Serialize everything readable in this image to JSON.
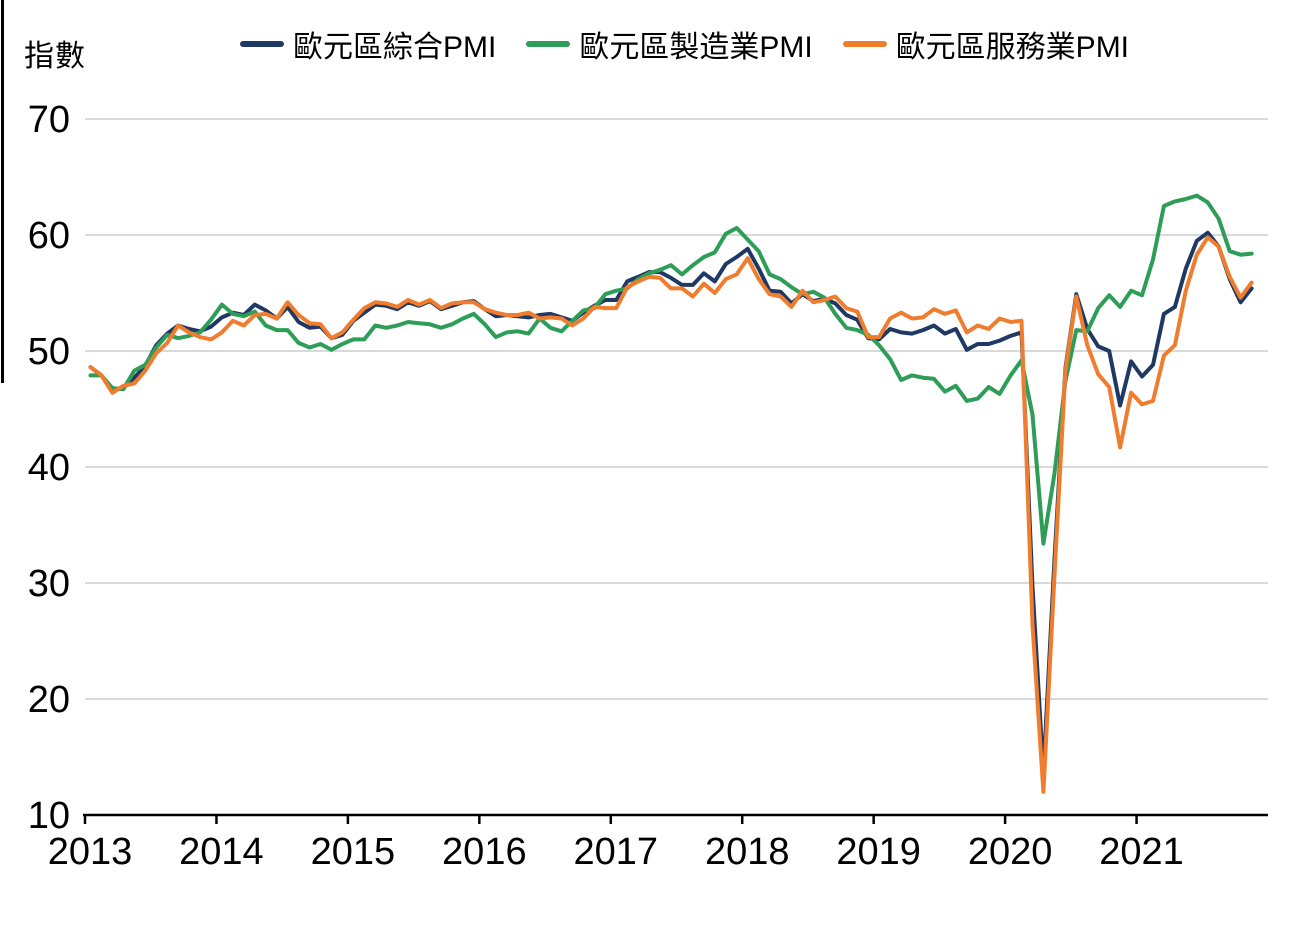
{
  "page": {
    "background": "#FFFFFF"
  },
  "chart_data": {
    "type": "line",
    "title": "",
    "ylabel": "指數",
    "xlabel": "",
    "x_unit": "month",
    "x_start": "2013-01",
    "x_end": "2021-11",
    "x_tick_labels": [
      "2013",
      "2014",
      "2015",
      "2016",
      "2017",
      "2018",
      "2019",
      "2020",
      "2021"
    ],
    "y_ticks": [
      10,
      20,
      30,
      40,
      50,
      60,
      70
    ],
    "ylim": [
      10,
      70
    ],
    "grid": "horizontal",
    "grid_color": "#D9D9D9",
    "axis_color": "#000000",
    "legend_position": "top",
    "series": [
      {
        "name": "歐元區綜合PMI",
        "color": "#1F3864",
        "values": [
          48.6,
          47.9,
          46.5,
          46.9,
          47.7,
          48.7,
          50.5,
          51.5,
          52.2,
          51.9,
          51.7,
          52.1,
          52.9,
          53.3,
          53.1,
          54.0,
          53.5,
          52.8,
          53.8,
          52.5,
          52.0,
          52.1,
          51.1,
          51.4,
          52.6,
          53.3,
          54.0,
          53.9,
          53.6,
          54.2,
          53.9,
          54.3,
          53.6,
          53.9,
          54.2,
          54.3,
          53.6,
          53.0,
          53.1,
          53.0,
          52.9,
          53.1,
          53.2,
          52.9,
          52.6,
          53.3,
          53.9,
          54.4,
          54.4,
          56.0,
          56.4,
          56.8,
          56.8,
          56.3,
          55.7,
          55.7,
          56.7,
          56.0,
          57.5,
          58.1,
          58.8,
          57.1,
          55.2,
          55.1,
          54.1,
          54.9,
          54.3,
          54.5,
          54.1,
          53.1,
          52.7,
          51.1,
          51.0,
          51.9,
          51.6,
          51.5,
          51.8,
          52.2,
          51.5,
          51.9,
          50.1,
          50.6,
          50.6,
          50.9,
          51.3,
          51.6,
          29.7,
          13.6,
          31.9,
          48.5,
          54.9,
          51.9,
          50.4,
          50.0,
          45.3,
          49.1,
          47.8,
          48.8,
          53.2,
          53.8,
          57.1,
          59.5,
          60.2,
          59.0,
          56.2,
          54.2,
          55.4
        ]
      },
      {
        "name": "歐元區製造業PMI",
        "color": "#2E9D58",
        "values": [
          47.9,
          47.9,
          46.8,
          46.7,
          48.3,
          48.8,
          50.3,
          51.4,
          51.1,
          51.3,
          51.6,
          52.7,
          54.0,
          53.2,
          53.0,
          53.4,
          52.2,
          51.8,
          51.8,
          50.7,
          50.3,
          50.6,
          50.1,
          50.6,
          51.0,
          51.0,
          52.2,
          52.0,
          52.2,
          52.5,
          52.4,
          52.3,
          52.0,
          52.3,
          52.8,
          53.2,
          52.3,
          51.2,
          51.6,
          51.7,
          51.5,
          52.8,
          52.0,
          51.7,
          52.6,
          53.5,
          53.7,
          54.9,
          55.2,
          55.4,
          56.2,
          56.7,
          57.0,
          57.4,
          56.6,
          57.4,
          58.1,
          58.5,
          60.1,
          60.6,
          59.6,
          58.6,
          56.6,
          56.2,
          55.5,
          54.9,
          55.1,
          54.6,
          53.2,
          52.0,
          51.8,
          51.4,
          50.5,
          49.3,
          47.5,
          47.9,
          47.7,
          47.6,
          46.5,
          47.0,
          45.7,
          45.9,
          46.9,
          46.3,
          47.9,
          49.2,
          44.5,
          33.4,
          39.4,
          47.4,
          51.8,
          51.7,
          53.7,
          54.8,
          53.8,
          55.2,
          54.8,
          57.9,
          62.5,
          62.9,
          63.1,
          63.4,
          62.8,
          61.4,
          58.6,
          58.3,
          58.4
        ]
      },
      {
        "name": "歐元區服務業PMI",
        "color": "#F07D2E",
        "values": [
          48.6,
          47.9,
          46.4,
          47.0,
          47.2,
          48.3,
          49.8,
          50.7,
          52.2,
          51.6,
          51.2,
          51.0,
          51.6,
          52.6,
          52.2,
          53.1,
          53.2,
          52.8,
          54.2,
          53.1,
          52.4,
          52.3,
          51.1,
          51.6,
          52.7,
          53.7,
          54.2,
          54.1,
          53.8,
          54.4,
          54.0,
          54.4,
          53.7,
          54.1,
          54.2,
          54.2,
          53.6,
          53.3,
          53.1,
          53.1,
          53.3,
          52.8,
          52.9,
          52.8,
          52.2,
          52.8,
          53.8,
          53.7,
          53.7,
          55.5,
          56.0,
          56.4,
          56.3,
          55.4,
          55.4,
          54.7,
          55.8,
          55.0,
          56.2,
          56.6,
          58.0,
          56.2,
          54.9,
          54.7,
          53.8,
          55.2,
          54.2,
          54.4,
          54.7,
          53.7,
          53.4,
          51.2,
          51.2,
          52.8,
          53.3,
          52.8,
          52.9,
          53.6,
          53.2,
          53.5,
          51.6,
          52.2,
          51.9,
          52.8,
          52.5,
          52.6,
          26.4,
          12.0,
          30.5,
          48.3,
          54.7,
          50.5,
          48.0,
          46.9,
          41.7,
          46.4,
          45.4,
          45.7,
          49.6,
          50.5,
          55.2,
          58.3,
          59.8,
          59.0,
          56.4,
          54.6,
          55.9
        ]
      }
    ]
  }
}
